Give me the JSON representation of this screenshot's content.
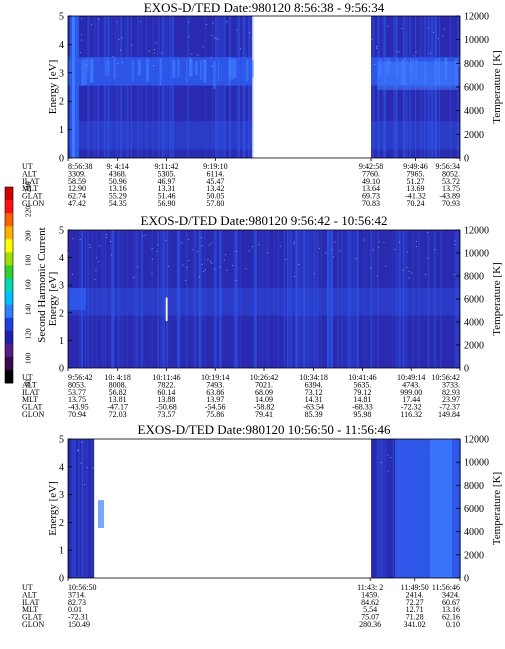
{
  "colors": {
    "background": "#2a2ab0",
    "band": "#2f5cf0",
    "bright": "#3f7fff",
    "gap": "#ffffff",
    "speckle": "#9fd8ff"
  },
  "colorbar": {
    "label": "Second Harmonic Current",
    "ticks": [
      "80",
      "100",
      "120",
      "140",
      "160",
      "180",
      "200",
      "220",
      "240"
    ],
    "colors": [
      "#000000",
      "#3a0a4a",
      "#5a1a8a",
      "#2020b0",
      "#1f3fe0",
      "#2f7fff",
      "#00c0ff",
      "#00d8b0",
      "#30d030",
      "#a0e000",
      "#ffff00",
      "#ffb000",
      "#ff6000",
      "#ff1010",
      "#d00000"
    ]
  },
  "chart_data": [
    {
      "type": "heatmap",
      "title": "EXOS-D/TED   Date:980120  8:56:38 - 9:56:34",
      "ylabel": "Energy [eV]",
      "ylabel_right": "Temperature [K]",
      "ylim": [
        0,
        5
      ],
      "y_ticks": [
        "0",
        "1",
        "2",
        "3",
        "4",
        "5"
      ],
      "ylim_right": [
        0,
        12000
      ],
      "y_ticks_right": [
        "0",
        "2000",
        "4000",
        "6000",
        "8000",
        "10000",
        "12000"
      ],
      "time_range": [
        "8:56:38",
        "9:56:34"
      ],
      "data_segments": [
        [
          "8:56:38",
          "9:24:45"
        ],
        [
          "9:42:58",
          "9:56:34"
        ]
      ],
      "band_ev": [
        2.55,
        3.55
      ],
      "lower_band_ev": [
        0.3,
        1.3
      ],
      "spikes": [],
      "orbit": {
        "labels": [
          "UT",
          "ALT",
          "ILAT",
          "MLT",
          "GLAT",
          "GLON"
        ],
        "columns": [
          {
            "at": "8:56:38",
            "values": [
              "8:56:38",
              "3309.",
              "58.59",
              "12.90",
              "62.74",
              "47.42"
            ]
          },
          {
            "at": "9:04:14",
            "values": [
              "9: 4:14",
              "4368.",
              "50.96",
              "13.16",
              "55.29",
              "54.35"
            ]
          },
          {
            "at": "9:11:42",
            "values": [
              "9:11:42",
              "5305.",
              "46.97",
              "13.31",
              "51.46",
              "56.90"
            ]
          },
          {
            "at": "9:19:10",
            "values": [
              "9:19:10",
              "6114.",
              "45.47",
              "13.42",
              "50.05",
              "57.80"
            ]
          },
          {
            "at": "9:42:58",
            "values": [
              "9:42:58",
              "7760.",
              "49.10",
              "13.64",
              "69.73",
              "70.83"
            ]
          },
          {
            "at": "9:49:46",
            "values": [
              "9:49:46",
              "7965.",
              "51.27",
              "13.69",
              "-41.32",
              "70.24"
            ]
          },
          {
            "at": "9:56:34",
            "values": [
              "9:56:34",
              "8052.",
              "53.72",
              "13.75",
              "-43.89",
              "70.93"
            ]
          }
        ]
      }
    },
    {
      "type": "heatmap",
      "title": "EXOS-D/TED   Date:980120  9:56:42 - 10:56:42",
      "ylabel": "Energy [eV]",
      "ylabel_right": "Temperature [K]",
      "ylim": [
        0,
        5
      ],
      "y_ticks": [
        "0",
        "1",
        "2",
        "3",
        "4",
        "5"
      ],
      "ylim_right": [
        0,
        12000
      ],
      "y_ticks_right": [
        "0",
        "2000",
        "4000",
        "6000",
        "8000",
        "10000",
        "12000"
      ],
      "time_range": [
        "9:56:42",
        "10:56:42"
      ],
      "data_segments": [
        [
          "9:56:42",
          "10:56:42"
        ]
      ],
      "band_ev": [],
      "lower_band_ev": [
        1.9,
        2.9
      ],
      "spikes": [
        {
          "at": "10:11:46",
          "ev": [
            1.7,
            2.55
          ]
        }
      ],
      "orbit": {
        "labels": [
          "UT",
          "ALT",
          "ILAT",
          "MLT",
          "GLAT",
          "GLON"
        ],
        "columns": [
          {
            "at": "9:56:42",
            "values": [
              "9:56:42",
              "8053.",
              "53.77",
              "13.75",
              "-43.95",
              "70.94"
            ]
          },
          {
            "at": "10:04:18",
            "values": [
              "10: 4:18",
              "8008.",
              "56.82",
              "13.81",
              "-47.17",
              "72.03"
            ]
          },
          {
            "at": "10:11:46",
            "values": [
              "10:11:46",
              "7822.",
              "60.14",
              "13.88",
              "-50.68",
              "73.57"
            ]
          },
          {
            "at": "10:19:14",
            "values": [
              "10:19:14",
              "7493.",
              "63.86",
              "13.97",
              "-54.56",
              "75.86"
            ]
          },
          {
            "at": "10:26:42",
            "values": [
              "10:26:42",
              "7021.",
              "68.09",
              "14.09",
              "-58.82",
              "79.41"
            ]
          },
          {
            "at": "10:34:18",
            "values": [
              "10:34:18",
              "6394.",
              "73.12",
              "14.31",
              "-63.54",
              "85.39"
            ]
          },
          {
            "at": "10:41:46",
            "values": [
              "10:41:46",
              "5635.",
              "79.12",
              "14.81",
              "-68.33",
              "95.98"
            ]
          },
          {
            "at": "10:49:14",
            "values": [
              "10:49:14",
              "4743.",
              "999.00",
              "17.44",
              "-72.32",
              "116.32"
            ]
          },
          {
            "at": "10:56:42",
            "values": [
              "10:56:42",
              "3733.",
              "82.93",
              "23.97",
              "-72.37",
              "149.84"
            ]
          }
        ]
      }
    },
    {
      "type": "heatmap",
      "title": "EXOS-D/TED   Date:980120  10:56:50 - 11:56:46",
      "ylabel": "Energy [eV]",
      "ylabel_right": "Temperature [K]",
      "ylim": [
        0,
        5
      ],
      "y_ticks": [
        "0",
        "1",
        "2",
        "3",
        "4",
        "5"
      ],
      "ylim_right": [
        0,
        12000
      ],
      "y_ticks_right": [
        "0",
        "2000",
        "4000",
        "6000",
        "8000",
        "10000",
        "12000"
      ],
      "time_range": [
        "10:56:50",
        "11:56:46"
      ],
      "data_segments": [
        [
          "10:56:50",
          "11:00:50"
        ],
        [
          "11:43:10",
          "11:56:46"
        ]
      ],
      "band_ev": [],
      "lower_band_ev": [],
      "spikes": [],
      "orbit": {
        "labels": [
          "UT",
          "ALT",
          "ILAT",
          "MLT",
          "GLAT",
          "GLON"
        ],
        "columns": [
          {
            "at": "10:56:50",
            "values": [
              "10:56:50",
              "3714.",
              "82.73",
              "0.01",
              "-72.31",
              "150.49"
            ]
          },
          {
            "at": "11:43:02",
            "values": [
              "11:43: 2",
              "1459.",
              "84.62",
              "5.54",
              "75.07",
              "280.36"
            ]
          },
          {
            "at": "11:49:50",
            "values": [
              "11:49:50",
              "2414.",
              "72.27",
              "12.71",
              "71.28",
              "341.02"
            ]
          },
          {
            "at": "11:56:46",
            "values": [
              "11:56:46",
              "3424.",
              "60.67",
              "13.16",
              "62.16",
              "0.10"
            ]
          }
        ]
      }
    }
  ]
}
